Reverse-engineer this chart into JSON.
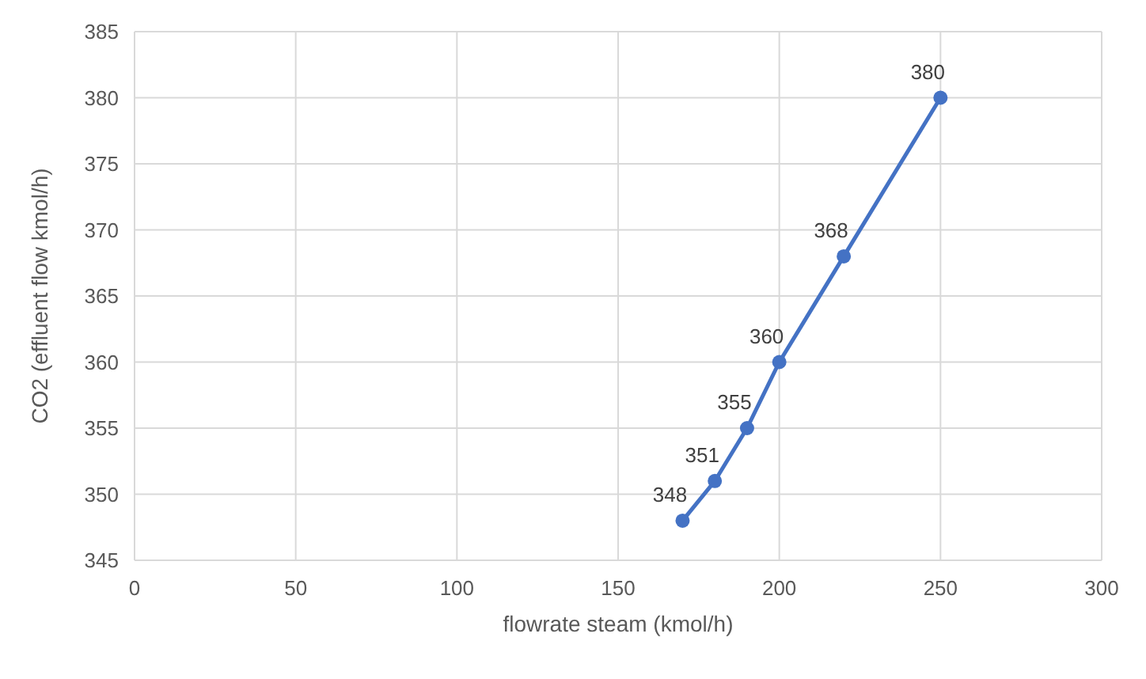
{
  "chart_data": {
    "type": "line",
    "xlabel": "flowrate steam (kmol/h)",
    "ylabel": "CO2 (effluent flow kmol/h)",
    "x": [
      170,
      180,
      190,
      200,
      220,
      250
    ],
    "series": [
      {
        "color": "#4472c4",
        "values": [
          348,
          351,
          355,
          360,
          368,
          380
        ]
      }
    ],
    "xlim": [
      0,
      300
    ],
    "xticks": [
      0,
      50,
      100,
      150,
      200,
      250,
      300
    ],
    "ylim": [
      345,
      385
    ],
    "yticks": [
      345,
      350,
      355,
      360,
      365,
      370,
      375,
      380,
      385
    ],
    "grid": true,
    "marker": "circle",
    "line_style": "solid",
    "data_labels": true
  }
}
